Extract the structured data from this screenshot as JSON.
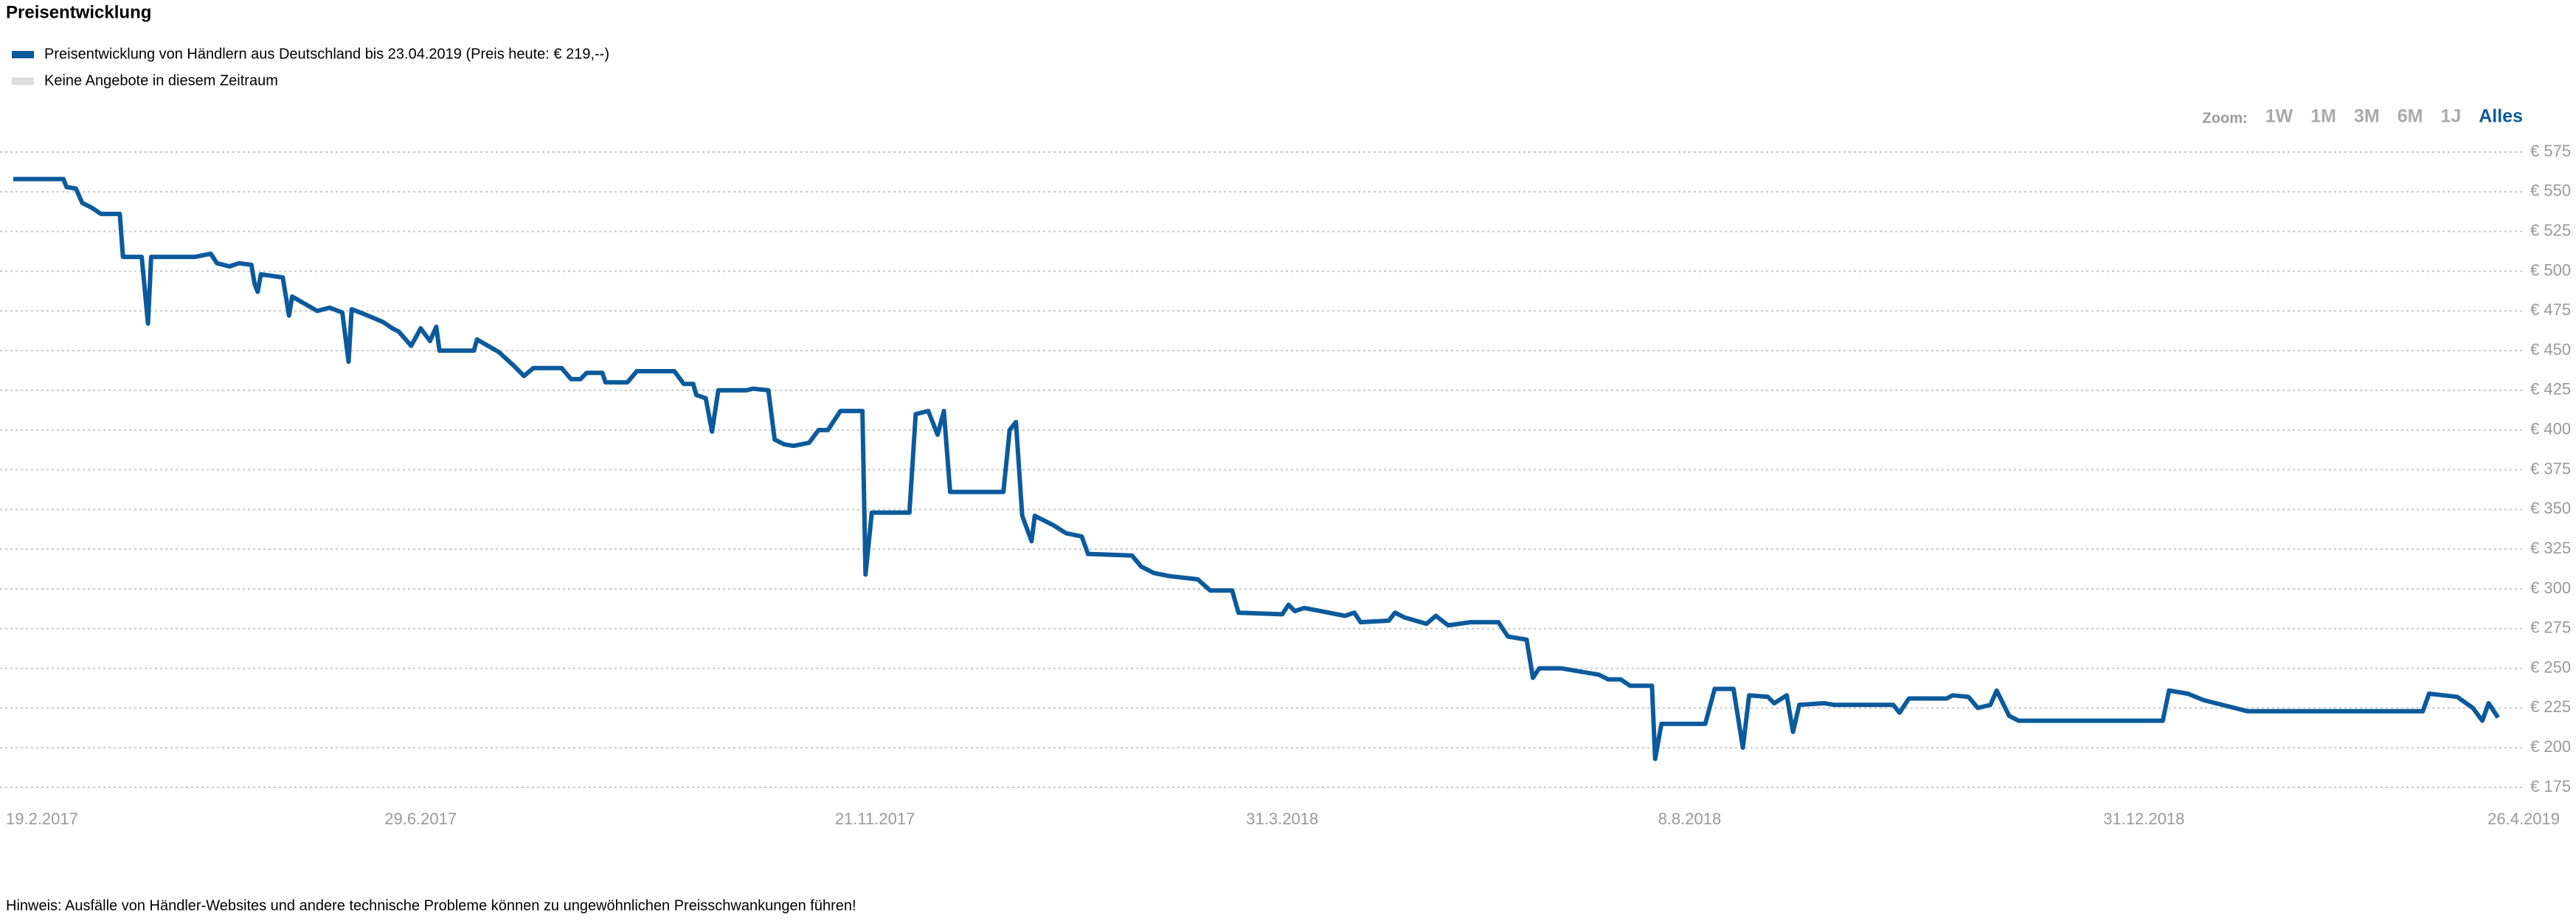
{
  "chart_data": {
    "type": "line",
    "title": "Preisentwicklung",
    "x": [
      "2017-02-19",
      "2017-03-07",
      "2017-03-08",
      "2017-03-11",
      "2017-03-13",
      "2017-03-16",
      "2017-03-19",
      "2017-03-25",
      "2017-03-26",
      "2017-04-01",
      "2017-04-03",
      "2017-04-04",
      "2017-04-18",
      "2017-04-23",
      "2017-04-25",
      "2017-04-29",
      "2017-05-02",
      "2017-05-06",
      "2017-05-07",
      "2017-05-08",
      "2017-05-09",
      "2017-05-16",
      "2017-05-18",
      "2017-05-19",
      "2017-05-27",
      "2017-05-31",
      "2017-06-04",
      "2017-06-06",
      "2017-06-07",
      "2017-06-11",
      "2017-06-17",
      "2017-06-20",
      "2017-06-22",
      "2017-06-26",
      "2017-06-29",
      "2017-07-02",
      "2017-07-04",
      "2017-07-05",
      "2017-07-16",
      "2017-07-17",
      "2017-07-24",
      "2017-07-29",
      "2017-08-01",
      "2017-08-04",
      "2017-08-13",
      "2017-08-16",
      "2017-08-19",
      "2017-08-21",
      "2017-08-26",
      "2017-08-27",
      "2017-09-03",
      "2017-09-06",
      "2017-09-18",
      "2017-09-21",
      "2017-09-24",
      "2017-09-25",
      "2017-09-28",
      "2017-09-30",
      "2017-10-02",
      "2017-10-11",
      "2017-10-13",
      "2017-10-18",
      "2017-10-20",
      "2017-10-23",
      "2017-10-26",
      "2017-10-31",
      "2017-11-03",
      "2017-11-06",
      "2017-11-10",
      "2017-11-17",
      "2017-11-18",
      "2017-11-20",
      "2017-12-02",
      "2017-12-04",
      "2017-12-08",
      "2017-12-11",
      "2017-12-13",
      "2017-12-15",
      "2018-01-01",
      "2018-01-03",
      "2018-01-05",
      "2018-01-07",
      "2018-01-10",
      "2018-01-11",
      "2018-01-17",
      "2018-01-21",
      "2018-01-26",
      "2018-01-28",
      "2018-02-11",
      "2018-02-14",
      "2018-02-18",
      "2018-02-23",
      "2018-03-04",
      "2018-03-08",
      "2018-03-15",
      "2018-03-17",
      "2018-03-31",
      "2018-04-02",
      "2018-04-04",
      "2018-04-07",
      "2018-04-20",
      "2018-04-23",
      "2018-04-25",
      "2018-05-04",
      "2018-05-06",
      "2018-05-09",
      "2018-05-16",
      "2018-05-19",
      "2018-05-23",
      "2018-05-30",
      "2018-06-08",
      "2018-06-11",
      "2018-06-17",
      "2018-06-19",
      "2018-06-21",
      "2018-06-28",
      "2018-07-10",
      "2018-07-13",
      "2018-07-17",
      "2018-07-20",
      "2018-07-27",
      "2018-07-28",
      "2018-07-30",
      "2018-08-13",
      "2018-08-16",
      "2018-08-22",
      "2018-08-25",
      "2018-08-27",
      "2018-09-02",
      "2018-09-04",
      "2018-09-08",
      "2018-09-10",
      "2018-09-12",
      "2018-09-20",
      "2018-09-23",
      "2018-10-12",
      "2018-10-14",
      "2018-10-17",
      "2018-10-29",
      "2018-10-31",
      "2018-11-05",
      "2018-11-08",
      "2018-11-12",
      "2018-11-14",
      "2018-11-18",
      "2018-11-21",
      "2019-01-06",
      "2019-01-08",
      "2019-01-14",
      "2019-01-19",
      "2019-01-25",
      "2019-01-29",
      "2019-02-02",
      "2019-03-30",
      "2019-04-01",
      "2019-04-10",
      "2019-04-15",
      "2019-04-18",
      "2019-04-20",
      "2019-04-23"
    ],
    "series": [
      {
        "name": "Preisentwicklung von Händlern aus Deutschland bis 23.04.2019 (Preis heute: € 219,--)",
        "color": "#0b5a9c",
        "values": [
          558,
          558,
          553,
          552,
          543,
          540,
          536,
          536,
          509,
          509,
          467,
          509,
          509,
          511,
          505,
          503,
          505,
          504,
          492,
          487,
          498,
          496,
          472,
          484,
          475,
          477,
          474,
          443,
          476,
          473,
          468,
          464,
          462,
          453,
          464,
          456,
          465,
          450,
          450,
          457,
          449,
          440,
          434,
          439,
          439,
          432,
          432,
          436,
          436,
          430,
          430,
          437,
          437,
          429,
          429,
          422,
          420,
          399,
          425,
          425,
          426,
          425,
          394,
          391,
          390,
          392,
          400,
          400,
          412,
          412,
          309,
          348,
          348,
          410,
          412,
          397,
          412,
          361,
          361,
          400,
          405,
          346,
          330,
          346,
          340,
          335,
          333,
          322,
          321,
          314,
          310,
          308,
          306,
          299,
          299,
          285,
          284,
          290,
          286,
          288,
          283,
          285,
          279,
          280,
          285,
          282,
          278,
          283,
          277,
          279,
          279,
          270,
          268,
          244,
          250,
          250,
          246,
          243,
          243,
          239,
          239,
          193,
          215,
          215,
          237,
          237,
          200,
          233,
          232,
          228,
          233,
          210,
          227,
          228,
          227,
          227,
          222,
          231,
          231,
          233,
          232,
          225,
          227,
          236,
          220,
          217,
          217,
          236,
          234,
          230,
          227,
          225,
          223,
          223,
          234,
          232,
          225,
          217,
          228,
          219
        ]
      }
    ],
    "legend_extra": {
      "label": "Keine Angebote in diesem Zeitraum",
      "color": "#dddddd"
    },
    "xlim": [
      "2017-02-19",
      "2019-04-26"
    ],
    "xticks": [
      {
        "value": "2017-02-19",
        "label": "19.2.2017"
      },
      {
        "value": "2017-06-29",
        "label": "29.6.2017"
      },
      {
        "value": "2017-11-21",
        "label": "21.11.2017"
      },
      {
        "value": "2018-03-31",
        "label": "31.3.2018"
      },
      {
        "value": "2018-08-08",
        "label": "8.8.2018"
      },
      {
        "value": "2018-12-31",
        "label": "31.12.2018"
      },
      {
        "value": "2019-04-26",
        "label": "26.4.2019"
      }
    ],
    "ylim": [
      175,
      575
    ],
    "yticks": [
      {
        "value": 175,
        "label": "€ 175"
      },
      {
        "value": 200,
        "label": "€ 200"
      },
      {
        "value": 225,
        "label": "€ 225"
      },
      {
        "value": 250,
        "label": "€ 250"
      },
      {
        "value": 275,
        "label": "€ 275"
      },
      {
        "value": 300,
        "label": "€ 300"
      },
      {
        "value": 325,
        "label": "€ 325"
      },
      {
        "value": 350,
        "label": "€ 350"
      },
      {
        "value": 375,
        "label": "€ 375"
      },
      {
        "value": 400,
        "label": "€ 400"
      },
      {
        "value": 425,
        "label": "€ 425"
      },
      {
        "value": 450,
        "label": "€ 450"
      },
      {
        "value": 475,
        "label": "€ 475"
      },
      {
        "value": 500,
        "label": "€ 500"
      },
      {
        "value": 525,
        "label": "€ 525"
      },
      {
        "value": 550,
        "label": "€ 550"
      },
      {
        "value": 575,
        "label": "€ 575"
      }
    ],
    "grid": true,
    "zoom_label": "Zoom:",
    "zoom_buttons": [
      "1W",
      "1M",
      "3M",
      "6M",
      "1J",
      "Alles"
    ],
    "zoom_active": 5,
    "note": "Hinweis: Ausfälle von Händler-Websites und andere technische Probleme können zu ungewöhnlichen Preisschwankungen führen!"
  }
}
